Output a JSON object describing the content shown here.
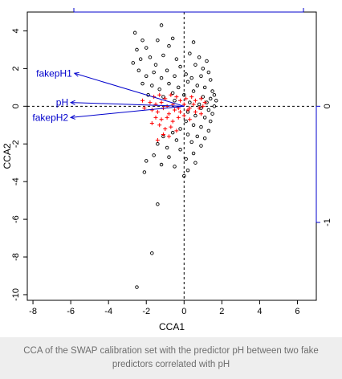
{
  "chart_data": {
    "type": "scatter",
    "title": "",
    "xlabel": "CCA1",
    "ylabel": "CCA2",
    "xlim": [
      -8.3,
      7.0
    ],
    "ylim": [
      -10.3,
      5.0
    ],
    "x_ticks": [
      -8,
      -6,
      -4,
      -2,
      0,
      2,
      4,
      6
    ],
    "y_ticks": [
      -10,
      -8,
      -6,
      -4,
      -2,
      0,
      2,
      4
    ],
    "right_axis_ticks": [
      0,
      -1
    ],
    "reference_lines": {
      "x": 0,
      "y": 0,
      "style": "dashed"
    },
    "grid": false,
    "legend": "none",
    "colors": {
      "sites": "#000000",
      "species": "#ff0000",
      "predictors": "#0000cc",
      "axis": "#000000",
      "secondary_axis": "#0000cc"
    },
    "predictors": [
      {
        "label": "fakepH1",
        "x": -5.8,
        "y": 1.75
      },
      {
        "label": "pH",
        "x": -6.0,
        "y": 0.2
      },
      {
        "label": "fakepH2",
        "x": -6.0,
        "y": -0.6
      }
    ],
    "series": [
      {
        "kind": "sites",
        "marker": "open-circle",
        "points": [
          [
            -2.6,
            3.9
          ],
          [
            -1.2,
            4.3
          ],
          [
            -2.2,
            3.5
          ],
          [
            -1.4,
            3.5
          ],
          [
            -2.5,
            3.0
          ],
          [
            -2.0,
            3.1
          ],
          [
            -0.8,
            3.2
          ],
          [
            0.5,
            3.4
          ],
          [
            -0.6,
            3.6
          ],
          [
            -2.3,
            2.5
          ],
          [
            -1.8,
            2.6
          ],
          [
            -1.1,
            2.7
          ],
          [
            -0.4,
            2.5
          ],
          [
            0.3,
            2.8
          ],
          [
            0.8,
            2.6
          ],
          [
            1.2,
            2.4
          ],
          [
            -2.7,
            2.3
          ],
          [
            -1.5,
            2.2
          ],
          [
            -0.2,
            2.1
          ],
          [
            0.6,
            2.2
          ],
          [
            1.0,
            2.0
          ],
          [
            1.3,
            1.8
          ],
          [
            -2.4,
            1.9
          ],
          [
            -2.0,
            1.6
          ],
          [
            -1.6,
            1.8
          ],
          [
            -1.2,
            1.5
          ],
          [
            -0.9,
            1.9
          ],
          [
            -0.5,
            1.6
          ],
          [
            0.1,
            1.7
          ],
          [
            0.4,
            1.5
          ],
          [
            0.9,
            1.6
          ],
          [
            1.4,
            1.4
          ],
          [
            -2.2,
            1.2
          ],
          [
            -1.7,
            1.1
          ],
          [
            -1.3,
            0.9
          ],
          [
            -0.8,
            1.2
          ],
          [
            -0.3,
            1.0
          ],
          [
            0.2,
            1.3
          ],
          [
            0.7,
            1.1
          ],
          [
            1.1,
            1.0
          ],
          [
            1.5,
            0.8
          ],
          [
            -1.9,
            0.6
          ],
          [
            -1.1,
            0.5
          ],
          [
            -0.6,
            0.7
          ],
          [
            0.0,
            0.6
          ],
          [
            0.5,
            0.8
          ],
          [
            1.0,
            0.5
          ],
          [
            1.4,
            0.4
          ],
          [
            1.6,
            0.6
          ],
          [
            -0.5,
            0.3
          ],
          [
            0.3,
            0.2
          ],
          [
            0.8,
            0.1
          ],
          [
            1.2,
            0.2
          ],
          [
            1.6,
            0.0
          ],
          [
            1.7,
            0.3
          ],
          [
            0.9,
            -0.1
          ],
          [
            1.3,
            -0.2
          ],
          [
            1.5,
            -0.4
          ],
          [
            0.2,
            -0.3
          ],
          [
            0.6,
            -0.5
          ],
          [
            1.1,
            -0.6
          ],
          [
            1.4,
            -0.8
          ],
          [
            0.1,
            -0.8
          ],
          [
            0.5,
            -1.0
          ],
          [
            0.9,
            -1.1
          ],
          [
            1.3,
            -1.3
          ],
          [
            -0.2,
            -1.2
          ],
          [
            -0.6,
            -1.4
          ],
          [
            0.2,
            -1.5
          ],
          [
            0.7,
            -1.6
          ],
          [
            1.1,
            -1.7
          ],
          [
            -1.1,
            -1.6
          ],
          [
            -0.4,
            -1.8
          ],
          [
            0.4,
            -1.9
          ],
          [
            0.9,
            -2.1
          ],
          [
            -1.4,
            -2.0
          ],
          [
            -0.9,
            -2.2
          ],
          [
            -0.2,
            -2.3
          ],
          [
            0.5,
            -2.5
          ],
          [
            -1.6,
            -2.6
          ],
          [
            -0.8,
            -2.7
          ],
          [
            0.1,
            -2.8
          ],
          [
            0.6,
            -3.0
          ],
          [
            -2.0,
            -2.9
          ],
          [
            -1.2,
            -3.1
          ],
          [
            -0.5,
            -3.2
          ],
          [
            0.2,
            -3.4
          ],
          [
            0.0,
            -3.7
          ],
          [
            -2.1,
            -3.5
          ],
          [
            -1.4,
            -5.2
          ],
          [
            -1.7,
            -7.8
          ],
          [
            -2.5,
            -9.6
          ]
        ]
      },
      {
        "kind": "species",
        "marker": "plus",
        "points": [
          [
            -1.6,
            0.5
          ],
          [
            -1.3,
            0.6
          ],
          [
            -1.0,
            0.4
          ],
          [
            -0.7,
            0.6
          ],
          [
            -0.4,
            0.5
          ],
          [
            -0.2,
            0.3
          ],
          [
            0.1,
            0.4
          ],
          [
            0.4,
            0.5
          ],
          [
            0.6,
            0.3
          ],
          [
            0.9,
            0.4
          ],
          [
            1.1,
            0.2
          ],
          [
            -1.8,
            0.2
          ],
          [
            -1.5,
            0.1
          ],
          [
            -1.2,
            0.2
          ],
          [
            -0.9,
            0.0
          ],
          [
            -0.6,
            0.1
          ],
          [
            -0.3,
            -0.1
          ],
          [
            0.0,
            0.1
          ],
          [
            0.3,
            -0.1
          ],
          [
            0.5,
            0.1
          ],
          [
            0.8,
            -0.1
          ],
          [
            1.0,
            0.0
          ],
          [
            -1.7,
            -0.2
          ],
          [
            -1.4,
            -0.3
          ],
          [
            -1.1,
            -0.1
          ],
          [
            -0.8,
            -0.4
          ],
          [
            -0.5,
            -0.2
          ],
          [
            -0.2,
            -0.3
          ],
          [
            0.2,
            -0.2
          ],
          [
            0.6,
            -0.3
          ],
          [
            0.9,
            -0.4
          ],
          [
            -1.5,
            -0.6
          ],
          [
            -1.2,
            -0.7
          ],
          [
            -0.9,
            -0.6
          ],
          [
            -0.6,
            -0.8
          ],
          [
            -0.3,
            -0.6
          ],
          [
            0.0,
            -0.5
          ],
          [
            0.3,
            -0.7
          ],
          [
            -2.1,
            -0.1
          ],
          [
            -2.2,
            0.3
          ],
          [
            -1.3,
            -1.0
          ],
          [
            -1.0,
            -1.2
          ],
          [
            -0.7,
            -1.1
          ],
          [
            -0.4,
            -1.3
          ],
          [
            -1.1,
            -1.5
          ],
          [
            -0.8,
            -1.6
          ],
          [
            -1.4,
            -1.8
          ],
          [
            -1.7,
            -0.9
          ]
        ]
      }
    ]
  },
  "caption": "CCA of the SWAP calibration set with the predictor pH between two fake predictors correlated with pH"
}
